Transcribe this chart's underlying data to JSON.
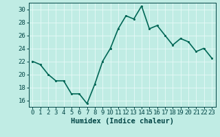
{
  "x": [
    0,
    1,
    2,
    3,
    4,
    5,
    6,
    7,
    8,
    9,
    10,
    11,
    12,
    13,
    14,
    15,
    16,
    17,
    18,
    19,
    20,
    21,
    22,
    23
  ],
  "y": [
    22,
    21.5,
    20,
    19,
    19,
    17,
    17,
    15.5,
    18.5,
    22,
    24,
    27,
    29,
    28.5,
    30.5,
    27,
    27.5,
    26,
    24.5,
    25.5,
    25,
    23.5,
    24,
    22.5
  ],
  "line_color": "#006655",
  "marker_color": "#006655",
  "bg_color": "#c0ece4",
  "grid_color": "#e8faf8",
  "xlabel": "Humidex (Indice chaleur)",
  "ylim": [
    15,
    31
  ],
  "xlim": [
    -0.5,
    23.5
  ],
  "yticks": [
    16,
    18,
    20,
    22,
    24,
    26,
    28,
    30
  ],
  "xticks": [
    0,
    1,
    2,
    3,
    4,
    5,
    6,
    7,
    8,
    9,
    10,
    11,
    12,
    13,
    14,
    15,
    16,
    17,
    18,
    19,
    20,
    21,
    22,
    23
  ],
  "font_color": "#004444",
  "xlabel_fontsize": 7.5,
  "tick_fontsize": 6.5,
  "line_width": 1.2,
  "marker_size": 2.5
}
